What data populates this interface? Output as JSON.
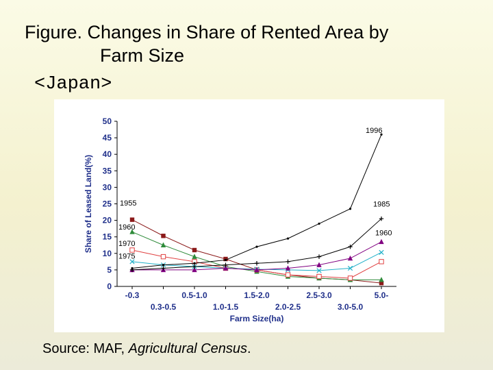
{
  "title": {
    "line1": "Figure. Changes in Share of Rented Area by",
    "line2": "Farm Size"
  },
  "country_label": "<Japan>",
  "source": {
    "prefix": "Source: MAF, ",
    "publication": "Agricultural Census",
    "suffix": "."
  },
  "chart_data": {
    "type": "line",
    "title": "",
    "xlabel": "Farm Size(ha)",
    "ylabel": "Share of Leased Land(%)",
    "ylim": [
      0,
      50
    ],
    "yticks": [
      "0",
      "5",
      "10",
      "15",
      "20",
      "25",
      "30",
      "35",
      "40",
      "45",
      "50"
    ],
    "categories": [
      "-0.3",
      "0.3-0.5",
      "0.5-1.0",
      "1.0-1.5",
      "1.5-2.0",
      "2.0-2.5",
      "2.5-3.0",
      "3.0-5.0",
      "5.0-"
    ],
    "grid": false,
    "legend": "inline labels",
    "series": [
      {
        "name": "1955",
        "color": "#8b1a1a",
        "marker": "square-filled",
        "values": [
          20.2,
          15.3,
          11.0,
          8.3,
          5.0,
          3.5,
          2.5,
          2.0,
          1.0
        ]
      },
      {
        "name": "1960",
        "color": "#2e8b3a",
        "marker": "triangle-filled",
        "values": [
          16.5,
          12.5,
          9.0,
          6.0,
          4.5,
          3.0,
          2.5,
          2.0,
          2.0
        ]
      },
      {
        "name": "1970",
        "color": "#e04040",
        "marker": "square-open",
        "values": [
          11.0,
          9.0,
          7.5,
          5.5,
          5.0,
          3.5,
          3.0,
          2.5,
          7.5
        ]
      },
      {
        "name": "1975",
        "color": "#20b0c8",
        "marker": "x",
        "values": [
          7.5,
          6.5,
          6.0,
          5.5,
          5.2,
          5.0,
          4.8,
          5.5,
          10.3
        ]
      },
      {
        "name": "",
        "color": "#800080",
        "marker": "triangle-filled",
        "values": [
          5.0,
          5.0,
          5.0,
          5.5,
          5.0,
          5.5,
          6.5,
          8.5,
          13.5
        ]
      },
      {
        "name": "1985",
        "color": "#000000",
        "marker": "plus",
        "values": [
          5.0,
          5.5,
          6.0,
          6.5,
          7.0,
          7.5,
          9.0,
          12.0,
          20.5
        ]
      },
      {
        "name": "1996",
        "color": "#000000",
        "marker": "dot",
        "values": [
          5.5,
          6.5,
          7.0,
          8.0,
          12.0,
          14.5,
          19.0,
          23.5,
          46.0
        ]
      }
    ],
    "annotations": [
      "1955",
      "1960",
      "1970",
      "1975",
      "1996",
      "1985",
      "1960"
    ]
  }
}
